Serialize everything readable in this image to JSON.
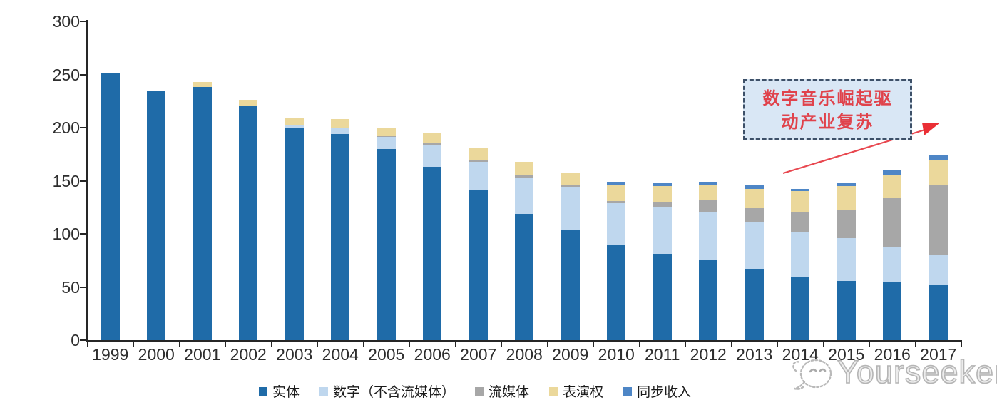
{
  "watermark": {
    "brand": "Yourseeker",
    "logo_icon": "chat-face-logo-icon",
    "color": "#b5b5b5"
  },
  "annotation": {
    "line1": "数字音乐崛起驱",
    "line2": "动产业复苏",
    "text_color": "#e0424b",
    "border_color": "#3d5068",
    "fill_color": "#d9e7f5",
    "arrow_color": "#e8474f"
  },
  "chart_data": {
    "type": "bar",
    "stacked": true,
    "title": "",
    "xlabel": "",
    "ylabel": "",
    "ylim": [
      0,
      300
    ],
    "y_ticks": [
      0,
      50,
      100,
      150,
      200,
      250,
      300
    ],
    "grid": false,
    "legend_position": "bottom",
    "categories": [
      "1999",
      "2000",
      "2001",
      "2002",
      "2003",
      "2004",
      "2005",
      "2006",
      "2007",
      "2008",
      "2009",
      "2010",
      "2011",
      "2012",
      "2013",
      "2014",
      "2015",
      "2016",
      "2017"
    ],
    "series": [
      {
        "name": "实体",
        "color": "#1f6ba8",
        "values": [
          252,
          234,
          238,
          220,
          200,
          194,
          180,
          163,
          141,
          119,
          104,
          89,
          81,
          75,
          67,
          60,
          56,
          55,
          52
        ]
      },
      {
        "name": "数字（不含流媒体）",
        "color": "#bfd7ee",
        "values": [
          0,
          0,
          0,
          0,
          2,
          5,
          11,
          21,
          27,
          34,
          40,
          40,
          44,
          45,
          44,
          42,
          40,
          32,
          28
        ]
      },
      {
        "name": "流媒体",
        "color": "#a7a7a7",
        "values": [
          0,
          0,
          0,
          0,
          0,
          0,
          1,
          2,
          2,
          3,
          2,
          2,
          5,
          12,
          13,
          18,
          27,
          47,
          66
        ]
      },
      {
        "name": "表演权",
        "color": "#ebd89b",
        "values": [
          0,
          0,
          5,
          6,
          7,
          9,
          8,
          9,
          11,
          12,
          12,
          15,
          15,
          14,
          18,
          20,
          22,
          21,
          24
        ]
      },
      {
        "name": "同步收入",
        "color": "#4e86c6",
        "values": [
          0,
          0,
          0,
          0,
          0,
          0,
          0,
          0,
          0,
          0,
          0,
          3,
          3,
          3,
          4,
          2,
          3,
          5,
          4
        ]
      }
    ]
  }
}
